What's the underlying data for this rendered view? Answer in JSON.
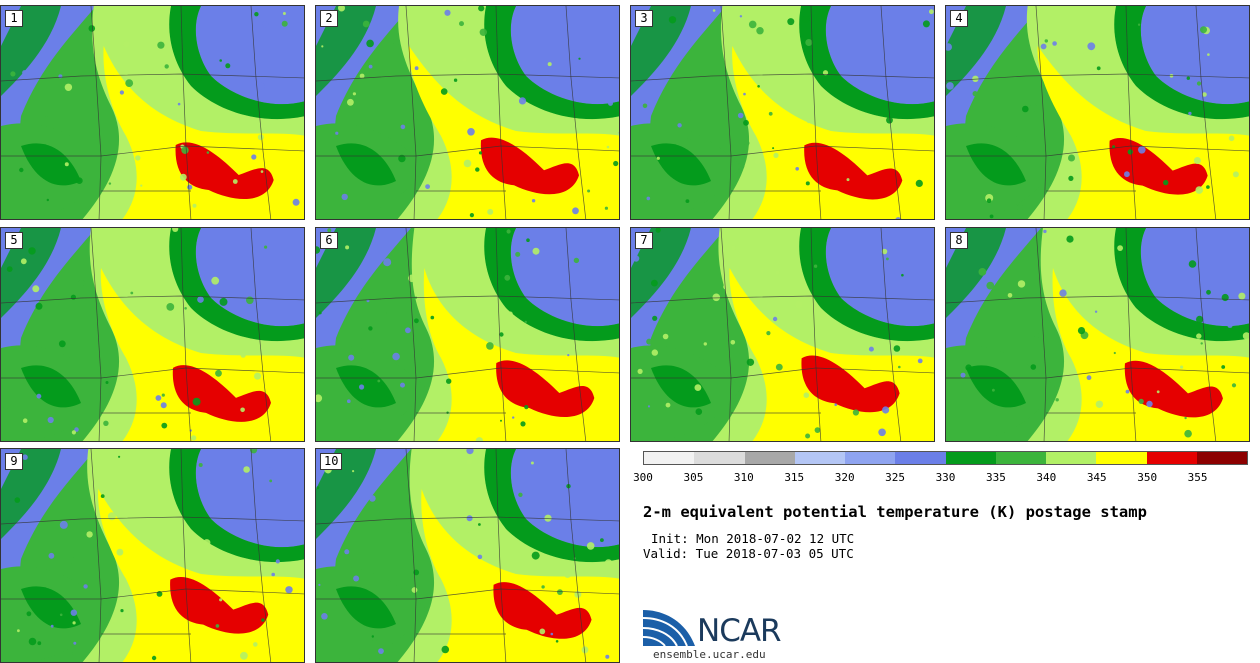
{
  "panels": [
    {
      "label": "1"
    },
    {
      "label": "2"
    },
    {
      "label": "3"
    },
    {
      "label": "4"
    },
    {
      "label": "5"
    },
    {
      "label": "6"
    },
    {
      "label": "7"
    },
    {
      "label": "8"
    },
    {
      "label": "9"
    },
    {
      "label": "10"
    }
  ],
  "legend": {
    "ticks": [
      "300",
      "305",
      "310",
      "315",
      "320",
      "325",
      "330",
      "335",
      "340",
      "345",
      "350",
      "355"
    ],
    "colors": [
      "#f2f2f2",
      "#dcdcdc",
      "#a8a8a8",
      "#b4c6f5",
      "#8fa4f0",
      "#6b7fe8",
      "#049b1c",
      "#3cb43c",
      "#b2f066",
      "#ffff00",
      "#e50000",
      "#8c0000"
    ]
  },
  "title": "2-m equivalent potential temperature (K) postage stamp",
  "init": "Init: Mon 2018-07-02 12 UTC",
  "valid": "Valid: Tue 2018-07-03 05 UTC",
  "logo": {
    "text": "NCAR",
    "url": "ensemble.ucar.edu"
  }
}
